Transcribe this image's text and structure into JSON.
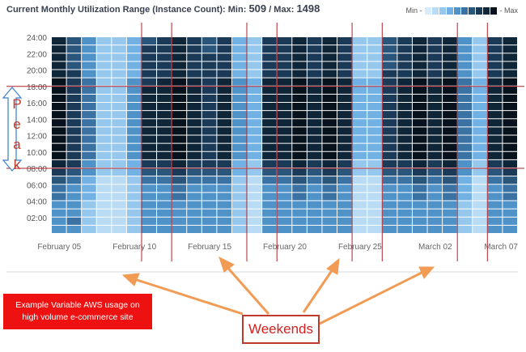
{
  "header": {
    "title_prefix": "Current Monthly Utilization Range (Instance Count): Min: ",
    "min_value": "509",
    "separator": " / Max: ",
    "max_value": "1498"
  },
  "legend": {
    "min_label": "Min -",
    "max_label": "- Max",
    "colors": [
      "#d8ebf8",
      "#b9dbf4",
      "#96c8ee",
      "#72b1e3",
      "#4f92c8",
      "#3a73a3",
      "#2a567c",
      "#1b3a58",
      "#0f2538",
      "#07121c"
    ]
  },
  "annotations": {
    "peak_letters": [
      "P",
      "e",
      "a",
      "k"
    ],
    "note_line1": "Example Variable AWS usage on",
    "note_line2": "high volume e-commerce site",
    "weekends_label": "Weekends"
  },
  "chart_data": {
    "type": "heatmap",
    "title": "Current Monthly Utilization Range (Instance Count): Min: 509 / Max: 1498",
    "value_min": 509,
    "value_max": 1498,
    "y_tick_labels": [
      "24:00",
      "22:00",
      "20:00",
      "18:00",
      "16:00",
      "14:00",
      "12:00",
      "10:00",
      "08:00",
      "06:00",
      "04:00",
      "02:00"
    ],
    "x_tick_labels": [
      "February 05",
      "February 10",
      "February 15",
      "February 20",
      "February 25",
      "March 02",
      "March 07"
    ],
    "x_tick_day_index": [
      1,
      6,
      11,
      16,
      21,
      26,
      31
    ],
    "rows": 24,
    "days": 31,
    "weekend_days": [
      7,
      8,
      14,
      15,
      21,
      22,
      28,
      29
    ],
    "peak_hours": [
      8,
      18
    ],
    "levels": [
      [
        8,
        6,
        4,
        2,
        2,
        3,
        6,
        7,
        8,
        7,
        6,
        7,
        3,
        2,
        7,
        7,
        8,
        7,
        8,
        7,
        2,
        2,
        6,
        7,
        8,
        7,
        8,
        4,
        2,
        7,
        8
      ],
      [
        8,
        6,
        4,
        2,
        2,
        3,
        7,
        7,
        8,
        7,
        6,
        7,
        3,
        2,
        7,
        7,
        8,
        7,
        8,
        7,
        2,
        2,
        6,
        7,
        8,
        7,
        8,
        4,
        2,
        7,
        8
      ],
      [
        8,
        6,
        4,
        2,
        2,
        3,
        7,
        7,
        8,
        7,
        7,
        7,
        3,
        2,
        7,
        7,
        8,
        7,
        8,
        7,
        2,
        2,
        6,
        7,
        8,
        7,
        8,
        4,
        2,
        7,
        8
      ],
      [
        8,
        6,
        4,
        2,
        2,
        3,
        7,
        7,
        8,
        7,
        7,
        7,
        3,
        2,
        7,
        7,
        8,
        7,
        8,
        7,
        2,
        2,
        6,
        7,
        8,
        7,
        8,
        4,
        2,
        7,
        8
      ],
      [
        8,
        7,
        4,
        2,
        2,
        3,
        7,
        7,
        8,
        7,
        7,
        7,
        3,
        2,
        7,
        7,
        8,
        7,
        8,
        7,
        2,
        2,
        7,
        7,
        8,
        7,
        8,
        4,
        2,
        7,
        8
      ],
      [
        9,
        7,
        5,
        2,
        2,
        4,
        7,
        8,
        9,
        8,
        7,
        8,
        4,
        3,
        8,
        8,
        9,
        8,
        9,
        8,
        3,
        3,
        7,
        8,
        9,
        8,
        9,
        5,
        3,
        8,
        9
      ],
      [
        9,
        7,
        5,
        2,
        2,
        4,
        8,
        8,
        9,
        8,
        7,
        8,
        4,
        3,
        8,
        8,
        9,
        8,
        9,
        8,
        3,
        3,
        7,
        8,
        9,
        8,
        9,
        5,
        3,
        8,
        9
      ],
      [
        9,
        7,
        5,
        2,
        2,
        4,
        8,
        8,
        9,
        8,
        7,
        8,
        4,
        3,
        8,
        8,
        9,
        8,
        9,
        8,
        3,
        3,
        7,
        8,
        9,
        8,
        9,
        5,
        3,
        8,
        9
      ],
      [
        9,
        7,
        5,
        2,
        2,
        4,
        8,
        8,
        9,
        8,
        7,
        8,
        4,
        3,
        8,
        8,
        9,
        8,
        9,
        8,
        3,
        3,
        7,
        8,
        9,
        8,
        9,
        5,
        3,
        8,
        9
      ],
      [
        9,
        7,
        5,
        2,
        2,
        4,
        8,
        8,
        9,
        8,
        7,
        8,
        4,
        3,
        8,
        8,
        9,
        8,
        9,
        8,
        3,
        3,
        7,
        8,
        9,
        8,
        9,
        5,
        3,
        8,
        9
      ],
      [
        9,
        7,
        5,
        2,
        2,
        4,
        8,
        8,
        9,
        8,
        7,
        8,
        4,
        3,
        8,
        8,
        9,
        8,
        9,
        8,
        3,
        3,
        7,
        8,
        9,
        8,
        9,
        5,
        3,
        8,
        9
      ],
      [
        9,
        7,
        5,
        2,
        2,
        4,
        8,
        8,
        9,
        8,
        7,
        8,
        4,
        3,
        8,
        8,
        9,
        8,
        9,
        8,
        3,
        3,
        7,
        8,
        9,
        8,
        9,
        5,
        3,
        8,
        9
      ],
      [
        9,
        7,
        5,
        2,
        2,
        4,
        8,
        8,
        9,
        8,
        7,
        8,
        4,
        3,
        8,
        8,
        9,
        8,
        9,
        8,
        3,
        3,
        7,
        8,
        9,
        8,
        9,
        5,
        3,
        8,
        9
      ],
      [
        9,
        7,
        5,
        2,
        2,
        4,
        8,
        8,
        9,
        8,
        7,
        8,
        4,
        3,
        8,
        8,
        9,
        8,
        9,
        8,
        3,
        3,
        7,
        8,
        9,
        8,
        9,
        5,
        3,
        8,
        9
      ],
      [
        9,
        7,
        5,
        2,
        2,
        4,
        8,
        8,
        9,
        8,
        7,
        8,
        4,
        3,
        8,
        8,
        9,
        8,
        9,
        8,
        3,
        3,
        7,
        8,
        9,
        8,
        9,
        5,
        3,
        8,
        9
      ],
      [
        8,
        7,
        4,
        2,
        2,
        3,
        7,
        7,
        8,
        7,
        7,
        7,
        3,
        2,
        7,
        7,
        8,
        7,
        8,
        7,
        2,
        2,
        7,
        7,
        8,
        7,
        8,
        4,
        2,
        7,
        8
      ],
      [
        7,
        6,
        4,
        2,
        2,
        3,
        6,
        6,
        7,
        6,
        6,
        6,
        3,
        2,
        6,
        6,
        7,
        6,
        7,
        6,
        2,
        2,
        6,
        6,
        7,
        6,
        7,
        4,
        2,
        6,
        7
      ],
      [
        6,
        5,
        3,
        1,
        1,
        2,
        5,
        5,
        6,
        5,
        5,
        5,
        2,
        1,
        5,
        5,
        6,
        5,
        6,
        5,
        1,
        1,
        5,
        5,
        6,
        5,
        6,
        3,
        1,
        5,
        6
      ],
      [
        5,
        4,
        3,
        1,
        1,
        2,
        4,
        4,
        5,
        4,
        4,
        4,
        2,
        1,
        4,
        4,
        5,
        4,
        5,
        4,
        1,
        1,
        4,
        4,
        5,
        4,
        5,
        3,
        1,
        4,
        5
      ],
      [
        5,
        4,
        3,
        1,
        1,
        2,
        4,
        4,
        5,
        4,
        4,
        4,
        2,
        1,
        4,
        4,
        5,
        4,
        5,
        4,
        1,
        1,
        4,
        4,
        5,
        4,
        5,
        3,
        1,
        4,
        5
      ],
      [
        4,
        4,
        2,
        1,
        1,
        2,
        4,
        4,
        4,
        4,
        4,
        4,
        2,
        1,
        4,
        4,
        4,
        4,
        4,
        4,
        1,
        1,
        4,
        4,
        4,
        4,
        4,
        2,
        1,
        4,
        4
      ],
      [
        4,
        4,
        2,
        1,
        1,
        2,
        4,
        4,
        4,
        4,
        4,
        4,
        2,
        1,
        4,
        4,
        4,
        4,
        4,
        4,
        1,
        1,
        4,
        4,
        4,
        4,
        4,
        2,
        1,
        4,
        4
      ],
      [
        4,
        5,
        2,
        1,
        1,
        2,
        4,
        4,
        4,
        4,
        4,
        4,
        2,
        1,
        4,
        4,
        4,
        4,
        4,
        4,
        1,
        1,
        4,
        4,
        4,
        4,
        4,
        2,
        1,
        4,
        4
      ],
      [
        4,
        4,
        2,
        1,
        1,
        2,
        4,
        4,
        4,
        4,
        4,
        4,
        2,
        1,
        4,
        4,
        4,
        4,
        4,
        4,
        1,
        1,
        4,
        4,
        4,
        4,
        4,
        2,
        1,
        4,
        4
      ]
    ]
  }
}
